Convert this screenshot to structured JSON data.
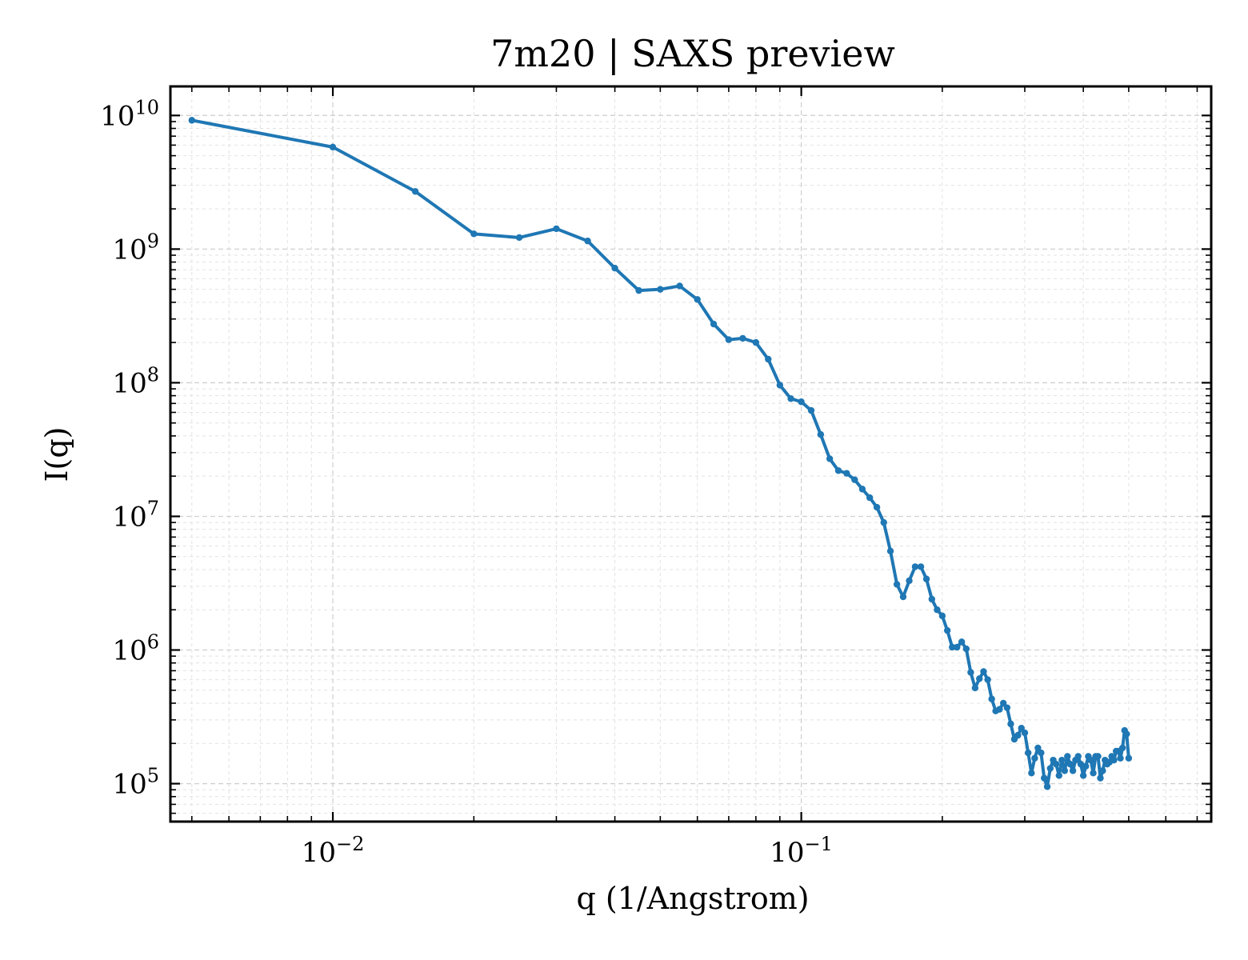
{
  "chart_data": {
    "type": "line",
    "title": "7m20 | SAXS preview",
    "xlabel": "q (1/Angstrom)",
    "ylabel": "I(q)",
    "x_scale": "log",
    "y_scale": "log",
    "xlim": [
      0.0045,
      0.75
    ],
    "ylim": [
      52000,
      16500000000
    ],
    "grid": true,
    "x_ticks": [
      {
        "value": 0.01,
        "base": "10",
        "exp": "−2"
      },
      {
        "value": 0.1,
        "base": "10",
        "exp": "−1"
      }
    ],
    "y_ticks": [
      {
        "value": 100000,
        "base": "10",
        "exp": "5"
      },
      {
        "value": 1000000,
        "base": "10",
        "exp": "6"
      },
      {
        "value": 10000000,
        "base": "10",
        "exp": "7"
      },
      {
        "value": 100000000,
        "base": "10",
        "exp": "8"
      },
      {
        "value": 1000000000,
        "base": "10",
        "exp": "9"
      },
      {
        "value": 10000000000,
        "base": "10",
        "exp": "10"
      }
    ],
    "series": [
      {
        "color": "#1f77b4",
        "marker": "circle",
        "x": [
          0.005,
          0.01,
          0.015,
          0.02,
          0.025,
          0.03,
          0.035,
          0.04,
          0.045,
          0.05,
          0.055,
          0.06,
          0.065,
          0.07,
          0.075,
          0.08,
          0.085,
          0.09,
          0.095,
          0.1,
          0.105,
          0.11,
          0.115,
          0.12,
          0.125,
          0.13,
          0.135,
          0.14,
          0.145,
          0.15,
          0.155,
          0.16,
          0.165,
          0.17,
          0.175,
          0.18,
          0.185,
          0.19,
          0.195,
          0.2,
          0.205,
          0.21,
          0.215,
          0.22,
          0.225,
          0.23,
          0.235,
          0.24,
          0.245,
          0.25,
          0.255,
          0.26,
          0.265,
          0.27,
          0.275,
          0.28,
          0.285,
          0.29,
          0.295,
          0.3,
          0.305,
          0.31,
          0.315,
          0.32,
          0.325,
          0.33,
          0.335,
          0.34,
          0.345,
          0.35,
          0.355,
          0.36,
          0.365,
          0.37,
          0.375,
          0.38,
          0.385,
          0.39,
          0.395,
          0.4,
          0.405,
          0.41,
          0.415,
          0.42,
          0.425,
          0.43,
          0.435,
          0.44,
          0.445,
          0.45,
          0.455,
          0.46,
          0.465,
          0.47,
          0.475,
          0.48,
          0.485,
          0.49,
          0.495,
          0.5
        ],
        "y": [
          9200000000,
          5800000000,
          2700000000,
          1300000000,
          1220000000,
          1420000000,
          1150000000,
          720000000,
          490000000,
          500000000,
          530000000,
          420000000,
          275000000,
          210000000,
          215000000,
          200000000,
          150000000,
          96000000,
          76000000,
          72000000,
          62000000,
          41000000,
          27000000,
          22000000,
          21000000,
          18800000,
          16000000,
          13800000,
          11700000,
          9000000,
          5500000,
          3100000,
          2500000,
          3300000,
          4200000,
          4200000,
          3400000,
          2400000,
          2000000,
          1800000,
          1400000,
          1050000,
          1050000,
          1150000,
          1020000,
          680000,
          520000,
          610000,
          690000,
          600000,
          430000,
          350000,
          360000,
          400000,
          370000,
          280000,
          215000,
          230000,
          260000,
          240000,
          170000,
          120000,
          155000,
          185000,
          170000,
          110000,
          95000,
          130000,
          150000,
          140000,
          115000,
          150000,
          125000,
          160000,
          140000,
          125000,
          150000,
          160000,
          140000,
          115000,
          135000,
          160000,
          150000,
          120000,
          160000,
          160000,
          110000,
          125000,
          150000,
          140000,
          145000,
          160000,
          150000,
          175000,
          175000,
          155000,
          185000,
          250000,
          235000,
          155000
        ]
      }
    ]
  }
}
